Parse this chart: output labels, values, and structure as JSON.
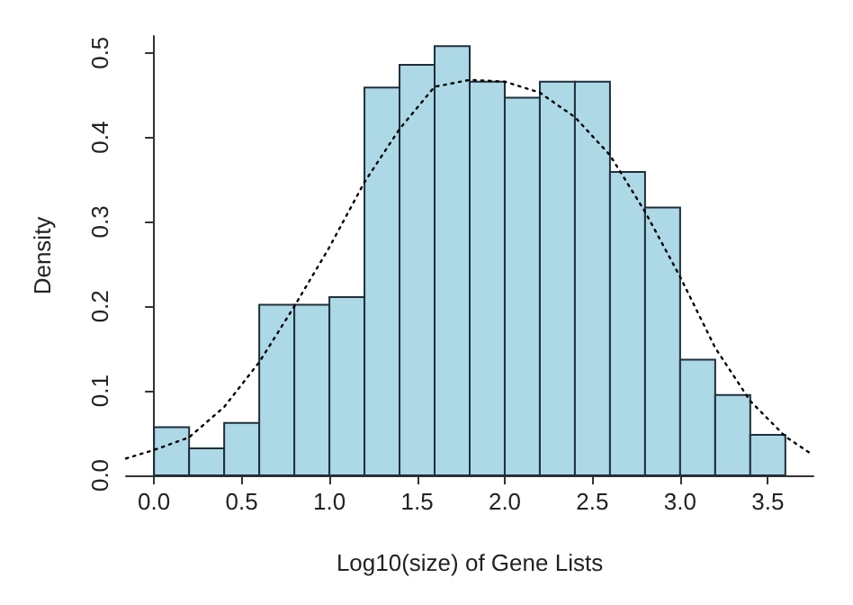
{
  "chart_data": {
    "type": "histogram",
    "xlabel": "Log10(size) of Gene Lists",
    "ylabel": "Density",
    "color": "#add8e6",
    "bins": [
      0,
      0.2,
      0.4,
      0.6,
      0.8,
      1.0,
      1.2,
      1.4,
      1.6,
      1.8,
      2.0,
      2.2,
      2.4,
      2.6,
      2.8,
      3.0,
      3.2,
      3.4,
      3.6
    ],
    "values": [
      0.057,
      0.032,
      0.062,
      0.202,
      0.202,
      0.211,
      0.459,
      0.486,
      0.508,
      0.466,
      0.447,
      0.466,
      0.466,
      0.359,
      0.317,
      0.137,
      0.095,
      0.048
    ],
    "series": [
      {
        "type": "line",
        "color": "#000000",
        "line_style": "dotted",
        "marker": "none",
        "x": [
          -0.16,
          0,
          0.2,
          0.4,
          0.6,
          0.8,
          1.0,
          1.2,
          1.4,
          1.6,
          1.8,
          2.0,
          2.2,
          2.4,
          2.6,
          2.8,
          3.0,
          3.2,
          3.4,
          3.6,
          3.75
        ],
        "values": [
          0.02,
          0.03,
          0.045,
          0.081,
          0.134,
          0.2,
          0.27,
          0.347,
          0.41,
          0.46,
          0.468,
          0.466,
          0.453,
          0.424,
          0.379,
          0.312,
          0.235,
          0.151,
          0.088,
          0.046,
          0.025
        ]
      }
    ],
    "xlim": [
      -0.16,
      3.76
    ],
    "ylim": [
      0,
      0.52
    ],
    "xticks": [
      {
        "value": 0,
        "label": "0.0"
      },
      0.5,
      {
        "value": 1,
        "label": "1.0"
      },
      1.5,
      {
        "value": 2,
        "label": "2.0"
      },
      2.5,
      {
        "value": 3,
        "label": "3.0"
      },
      3.5
    ],
    "yticks": [
      {
        "value": 0,
        "label": "0.0"
      },
      0.1,
      0.2,
      0.3,
      0.4,
      0.5
    ],
    "grid": false
  }
}
